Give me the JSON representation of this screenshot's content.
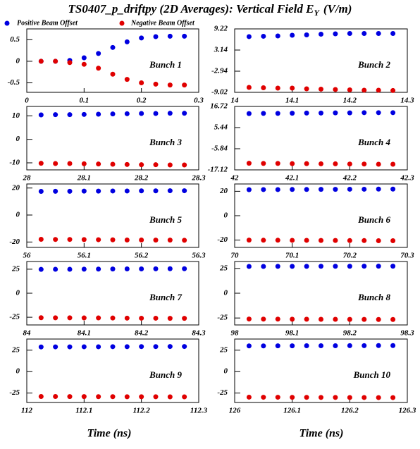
{
  "title": "TS0407_p_driftpy (2D Averages): Vertical Field E",
  "title_subscript": "Y",
  "title_unit": "(V/m)",
  "xlabel": "Time (ns)",
  "chart_data": [
    {
      "type": "scatter",
      "annotation": "Bunch 1",
      "x": [
        0.025,
        0.05,
        0.075,
        0.1,
        0.125,
        0.15,
        0.175,
        0.2,
        0.225,
        0.25,
        0.275
      ],
      "xlim": [
        0,
        0.3
      ],
      "xticks": [
        0,
        0.1,
        0.2,
        0.3
      ],
      "ylim": [
        -0.72,
        0.75
      ],
      "yticks": [
        0.5,
        0,
        -0.5
      ],
      "series": [
        {
          "name": "Positive Beam Offset",
          "color": "#0000e0",
          "values": [
            0,
            0,
            0.02,
            0.08,
            0.18,
            0.32,
            0.45,
            0.54,
            0.57,
            0.58,
            0.58
          ]
        },
        {
          "name": "Negative Beam Offset",
          "color": "#e00000",
          "values": [
            0,
            0,
            -0.03,
            -0.07,
            -0.16,
            -0.3,
            -0.42,
            -0.5,
            -0.53,
            -0.55,
            -0.55
          ]
        }
      ]
    },
    {
      "type": "scatter",
      "annotation": "Bunch 2",
      "x": [
        14.025,
        14.05,
        14.075,
        14.1,
        14.125,
        14.15,
        14.175,
        14.2,
        14.225,
        14.25,
        14.275
      ],
      "xlim": [
        14,
        14.3
      ],
      "xticks": [
        14,
        14.1,
        14.2,
        14.3
      ],
      "ylim": [
        -9.02,
        9.22
      ],
      "yticks": [
        9.22,
        3.14,
        -2.94,
        -9.02
      ],
      "series": [
        {
          "name": "Positive Beam Offset",
          "color": "#0000e0",
          "values": [
            7.0,
            7.1,
            7.2,
            7.4,
            7.5,
            7.7,
            7.8,
            7.9,
            7.9,
            7.9,
            7.9
          ]
        },
        {
          "name": "Negative Beam Offset",
          "color": "#e00000",
          "values": [
            -7.6,
            -7.7,
            -7.8,
            -7.8,
            -8.0,
            -8.1,
            -8.2,
            -8.3,
            -8.4,
            -8.4,
            -8.5
          ]
        }
      ]
    },
    {
      "type": "scatter",
      "annotation": "Bunch 3",
      "x": [
        28.025,
        28.05,
        28.075,
        28.1,
        28.125,
        28.15,
        28.175,
        28.2,
        28.225,
        28.25,
        28.275
      ],
      "xlim": [
        28,
        28.3
      ],
      "xticks": [
        28,
        28.1,
        28.2,
        28.3
      ],
      "ylim": [
        -13,
        14
      ],
      "yticks": [
        10,
        0,
        -10
      ],
      "series": [
        {
          "name": "Positive Beam Offset",
          "color": "#0000e0",
          "values": [
            10.4,
            10.5,
            10.5,
            10.6,
            10.7,
            10.8,
            10.9,
            11.0,
            11.0,
            11.1,
            11.1
          ]
        },
        {
          "name": "Negative Beam Offset",
          "color": "#e00000",
          "values": [
            -10.2,
            -10.3,
            -10.3,
            -10.4,
            -10.5,
            -10.6,
            -10.7,
            -10.8,
            -10.8,
            -10.9,
            -10.9
          ]
        }
      ]
    },
    {
      "type": "scatter",
      "annotation": "Bunch 4",
      "x": [
        42.025,
        42.05,
        42.075,
        42.1,
        42.125,
        42.15,
        42.175,
        42.2,
        42.225,
        42.25,
        42.275
      ],
      "xlim": [
        42,
        42.3
      ],
      "xticks": [
        42,
        42.1,
        42.2,
        42.3
      ],
      "ylim": [
        -17.12,
        16.72
      ],
      "yticks": [
        16.72,
        5.44,
        -5.84,
        -17.12
      ],
      "series": [
        {
          "name": "Positive Beam Offset",
          "color": "#0000e0",
          "values": [
            12.9,
            13.0,
            13.0,
            13.1,
            13.2,
            13.2,
            13.3,
            13.3,
            13.4,
            13.4,
            13.4
          ]
        },
        {
          "name": "Negative Beam Offset",
          "color": "#e00000",
          "values": [
            -13.6,
            -13.7,
            -13.7,
            -13.8,
            -13.8,
            -13.9,
            -13.9,
            -14.0,
            -14.0,
            -14.1,
            -14.1
          ]
        }
      ]
    },
    {
      "type": "scatter",
      "annotation": "Bunch 5",
      "x": [
        56.025,
        56.05,
        56.075,
        56.1,
        56.125,
        56.15,
        56.175,
        56.2,
        56.225,
        56.25,
        56.275
      ],
      "xlim": [
        56,
        56.3
      ],
      "xticks": [
        56,
        56.1,
        56.2,
        56.3
      ],
      "ylim": [
        -24,
        23
      ],
      "yticks": [
        20,
        0,
        -20
      ],
      "series": [
        {
          "name": "Positive Beam Offset",
          "color": "#0000e0",
          "values": [
            17.5,
            17.6,
            17.6,
            17.7,
            17.7,
            17.8,
            17.8,
            17.9,
            17.9,
            18.0,
            18.0
          ]
        },
        {
          "name": "Negative Beam Offset",
          "color": "#e00000",
          "values": [
            -18.0,
            -18.1,
            -18.1,
            -18.2,
            -18.3,
            -18.4,
            -18.5,
            -18.5,
            -18.6,
            -18.6,
            -18.7
          ]
        }
      ]
    },
    {
      "type": "scatter",
      "annotation": "Bunch 6",
      "x": [
        70.025,
        70.05,
        70.075,
        70.1,
        70.125,
        70.15,
        70.175,
        70.2,
        70.225,
        70.25,
        70.275
      ],
      "xlim": [
        70,
        70.3
      ],
      "xticks": [
        70,
        70.1,
        70.2,
        70.3
      ],
      "ylim": [
        -26,
        26
      ],
      "yticks": [
        20,
        0,
        -20
      ],
      "series": [
        {
          "name": "Positive Beam Offset",
          "color": "#0000e0",
          "values": [
            21.3,
            21.4,
            21.4,
            21.5,
            21.5,
            21.6,
            21.6,
            21.7,
            21.7,
            21.8,
            21.8
          ]
        },
        {
          "name": "Negative Beam Offset",
          "color": "#e00000",
          "values": [
            -20.0,
            -20.1,
            -20.1,
            -20.2,
            -20.2,
            -20.3,
            -20.3,
            -20.4,
            -20.4,
            -20.5,
            -20.5
          ]
        }
      ]
    },
    {
      "type": "scatter",
      "annotation": "Bunch 7",
      "x": [
        84.025,
        84.05,
        84.075,
        84.1,
        84.125,
        84.15,
        84.175,
        84.2,
        84.225,
        84.25,
        84.275
      ],
      "xlim": [
        84,
        84.3
      ],
      "xticks": [
        84,
        84.1,
        84.2,
        84.3
      ],
      "ylim": [
        -33,
        33
      ],
      "yticks": [
        25,
        0,
        -25
      ],
      "series": [
        {
          "name": "Positive Beam Offset",
          "color": "#0000e0",
          "values": [
            24.8,
            24.9,
            24.9,
            25.0,
            25.1,
            25.2,
            25.3,
            25.3,
            25.4,
            25.5,
            25.5
          ]
        },
        {
          "name": "Negative Beam Offset",
          "color": "#e00000",
          "values": [
            -25.5,
            -25.6,
            -25.6,
            -25.7,
            -25.7,
            -25.8,
            -25.9,
            -26.0,
            -26.0,
            -26.1,
            -26.1
          ]
        }
      ]
    },
    {
      "type": "scatter",
      "annotation": "Bunch 8",
      "x": [
        98.025,
        98.05,
        98.075,
        98.1,
        98.125,
        98.15,
        98.175,
        98.2,
        98.225,
        98.25,
        98.275
      ],
      "xlim": [
        98,
        98.3
      ],
      "xticks": [
        98,
        98.1,
        98.2,
        98.3
      ],
      "ylim": [
        -32,
        32
      ],
      "yticks": [
        25,
        0,
        -25
      ],
      "series": [
        {
          "name": "Positive Beam Offset",
          "color": "#0000e0",
          "values": [
            27.0,
            27.0,
            27.1,
            27.1,
            27.1,
            27.2,
            27.2,
            27.2,
            27.3,
            27.3,
            27.3
          ]
        },
        {
          "name": "Negative Beam Offset",
          "color": "#e00000",
          "values": [
            -26.0,
            -26.1,
            -26.1,
            -26.2,
            -26.2,
            -26.3,
            -26.3,
            -26.4,
            -26.4,
            -26.5,
            -26.5
          ]
        }
      ]
    },
    {
      "type": "scatter",
      "annotation": "Bunch 9",
      "x": [
        112.025,
        112.05,
        112.075,
        112.1,
        112.125,
        112.15,
        112.175,
        112.2,
        112.225,
        112.25,
        112.275
      ],
      "xlim": [
        112,
        112.3
      ],
      "xticks": [
        112,
        112.1,
        112.2,
        112.3
      ],
      "ylim": [
        -36,
        38
      ],
      "yticks": [
        25,
        0,
        -25
      ],
      "series": [
        {
          "name": "Positive Beam Offset",
          "color": "#0000e0",
          "values": [
            28.8,
            28.9,
            28.9,
            29.0,
            29.0,
            29.1,
            29.1,
            29.2,
            29.2,
            29.3,
            29.3
          ]
        },
        {
          "name": "Negative Beam Offset",
          "color": "#e00000",
          "values": [
            -29.0,
            -29.0,
            -29.1,
            -29.1,
            -29.2,
            -29.2,
            -29.3,
            -29.3,
            -29.3,
            -29.4,
            -29.4
          ]
        }
      ]
    },
    {
      "type": "scatter",
      "annotation": "Bunch 10",
      "x": [
        126.025,
        126.05,
        126.075,
        126.1,
        126.125,
        126.15,
        126.175,
        126.2,
        126.225,
        126.25,
        126.275
      ],
      "xlim": [
        126,
        126.3
      ],
      "xticks": [
        126,
        126.1,
        126.2,
        126.3
      ],
      "ylim": [
        -36,
        38
      ],
      "yticks": [
        25,
        0,
        -25
      ],
      "series": [
        {
          "name": "Positive Beam Offset",
          "color": "#0000e0",
          "values": [
            30.0,
            30.0,
            30.1,
            30.1,
            30.2,
            30.2,
            30.2,
            30.3,
            30.3,
            30.4,
            30.4
          ]
        },
        {
          "name": "Negative Beam Offset",
          "color": "#e00000",
          "values": [
            -29.8,
            -29.9,
            -29.9,
            -30.0,
            -30.0,
            -30.1,
            -30.1,
            -30.2,
            -30.2,
            -30.3,
            -30.3
          ]
        }
      ]
    }
  ]
}
